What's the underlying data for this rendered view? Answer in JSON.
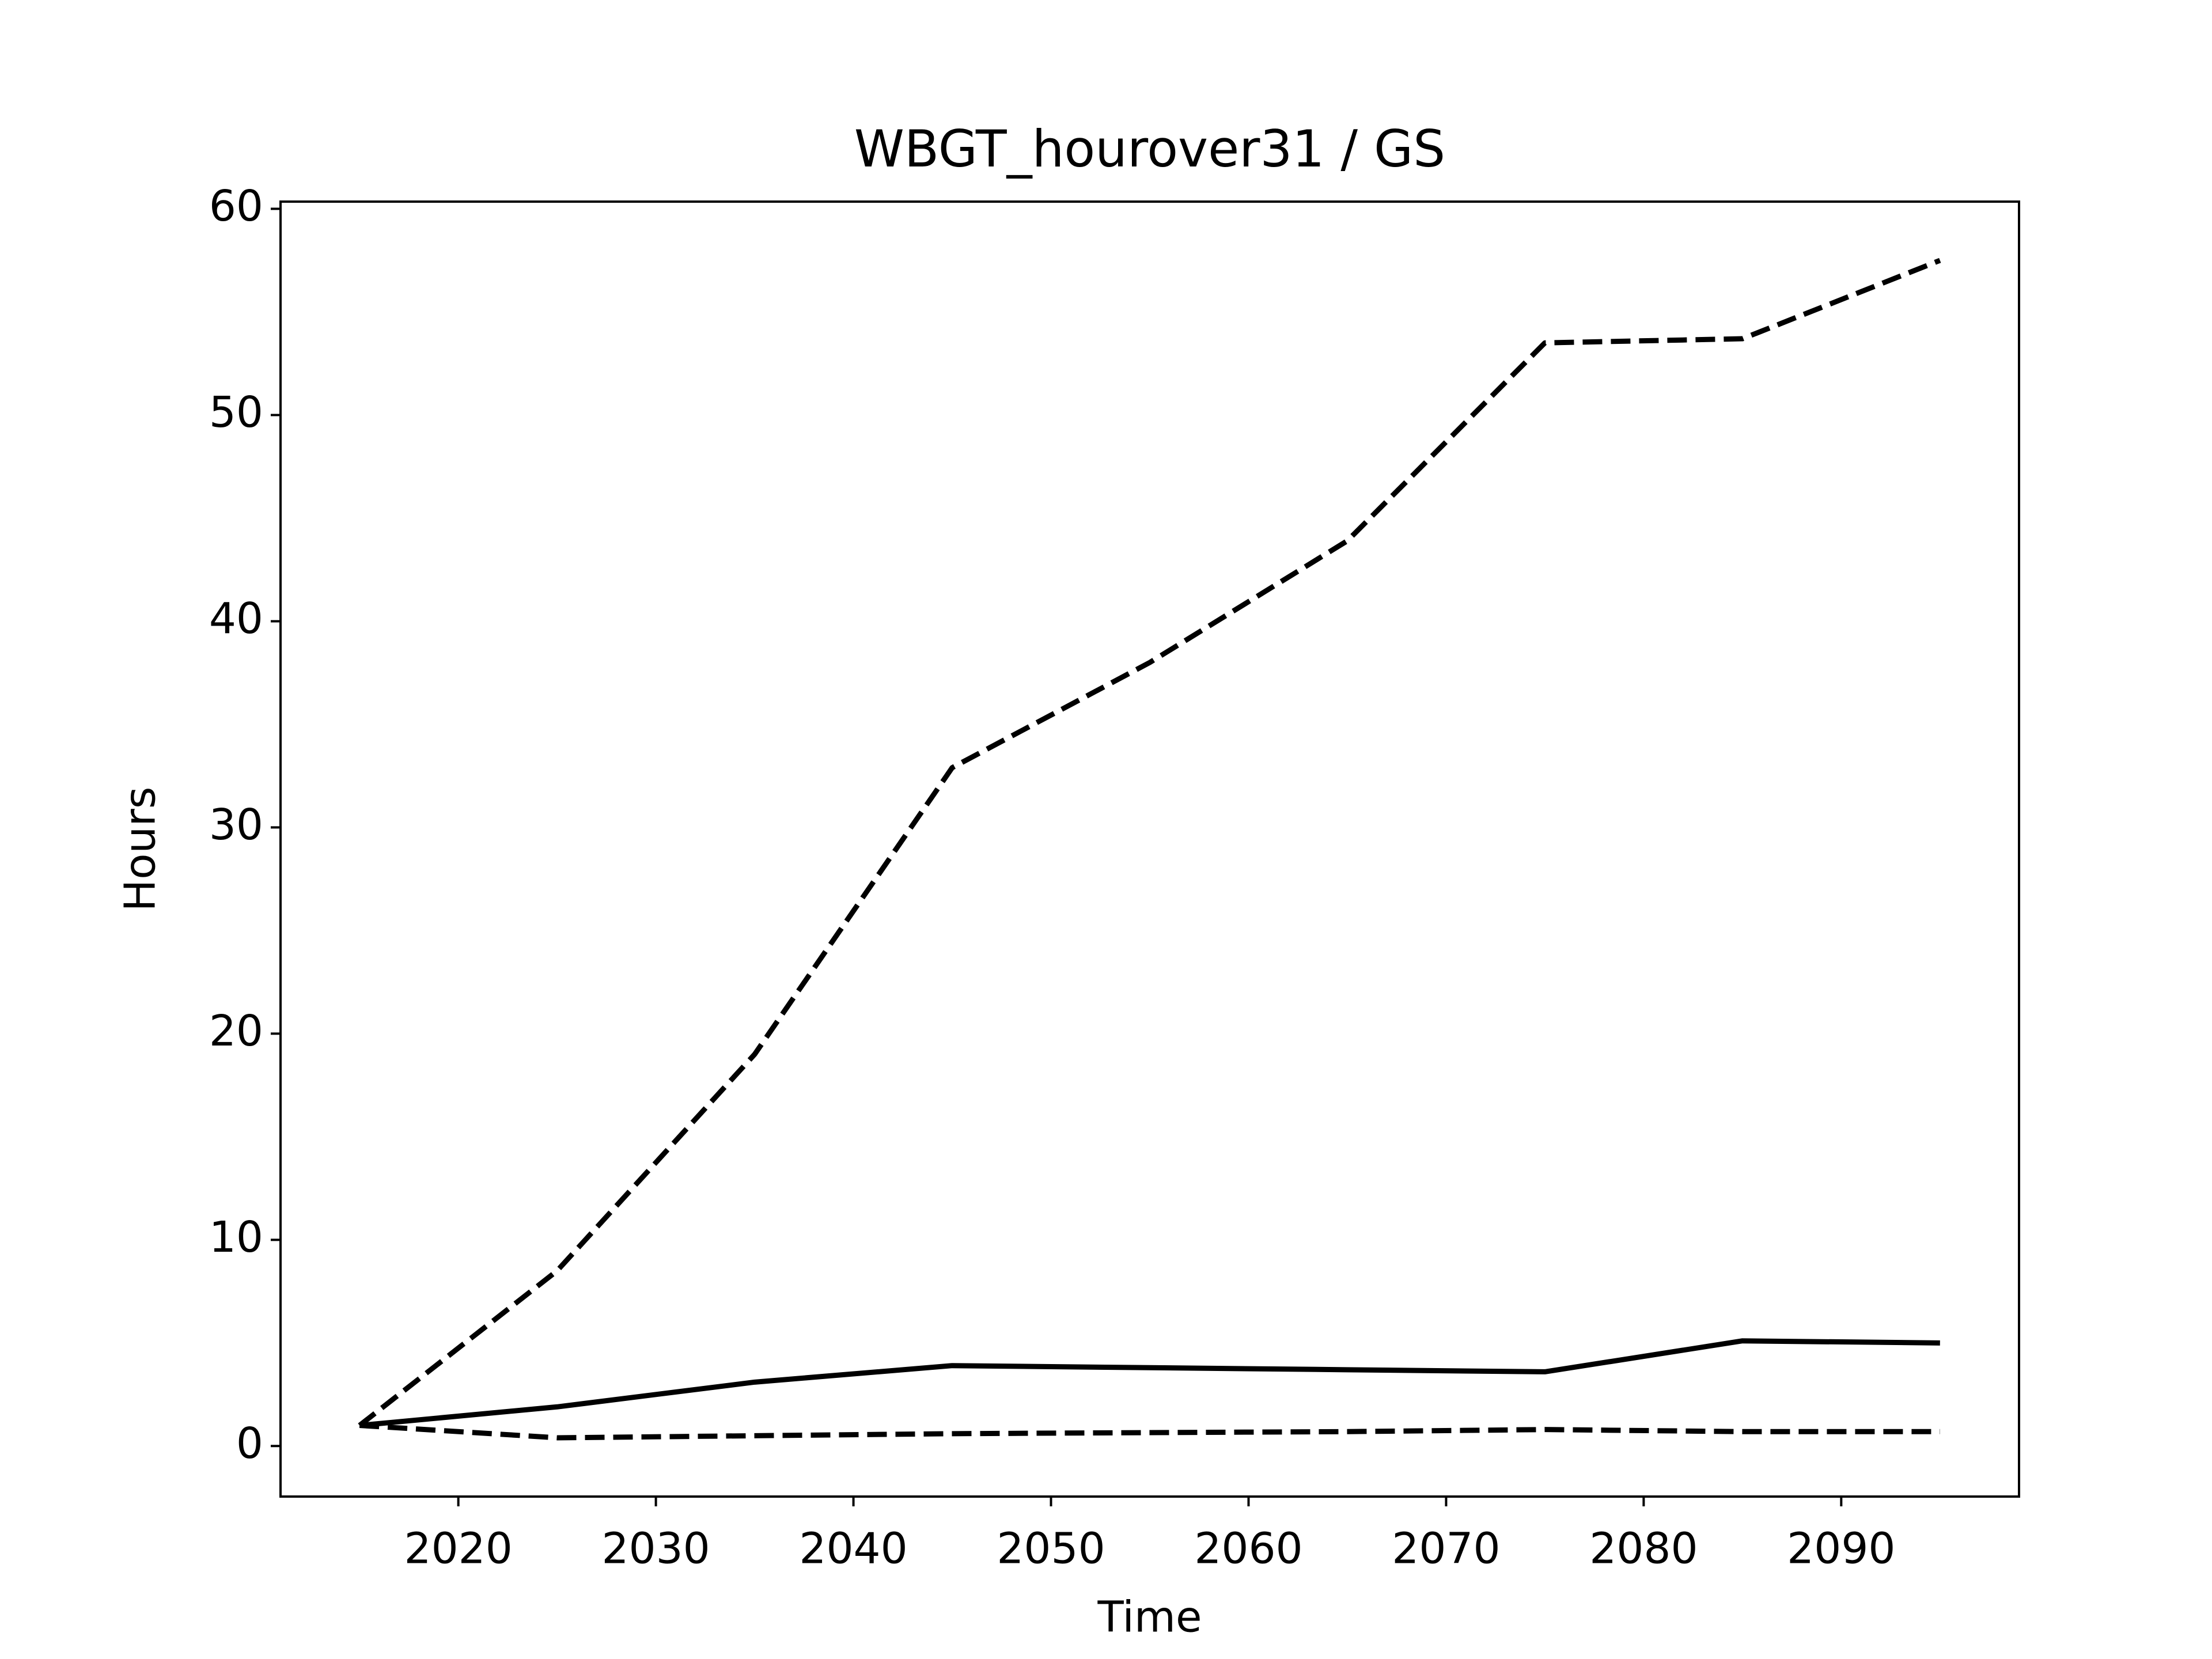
{
  "chart_data": {
    "type": "line",
    "title": "WBGT_hourover31 / GS",
    "xlabel": "Time",
    "ylabel": "Hours",
    "x": [
      2015,
      2025,
      2035,
      2045,
      2055,
      2065,
      2075,
      2085,
      2095
    ],
    "series": [
      {
        "color": "#000000",
        "style": "solid",
        "values": [
          1.0,
          1.9,
          3.1,
          3.9,
          3.8,
          3.7,
          3.6,
          5.1,
          5.0
        ]
      },
      {
        "color": "#000000",
        "style": "dashed",
        "values": [
          1.0,
          8.5,
          19.0,
          32.9,
          38.0,
          43.9,
          53.5,
          53.7,
          57.5
        ]
      },
      {
        "color": "#000000",
        "style": "dashed",
        "values": [
          1.0,
          0.4,
          0.5,
          0.6,
          0.65,
          0.7,
          0.8,
          0.7,
          0.7
        ]
      }
    ],
    "xlim": [
      2011,
      2099
    ],
    "ylim": [
      -2.45,
      60.35
    ],
    "xticks": [
      2020,
      2030,
      2040,
      2050,
      2060,
      2070,
      2080,
      2090
    ],
    "yticks": [
      0,
      10,
      20,
      30,
      40,
      50,
      60
    ],
    "grid": false
  }
}
